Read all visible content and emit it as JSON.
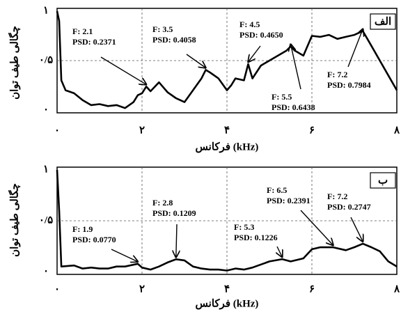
{
  "chart_data": [
    {
      "type": "line",
      "panel_label": "الف",
      "xlabel": "فرکانس (kHz)",
      "ylabel": "چگالی طیف توان",
      "color": "#000000",
      "grid": true,
      "xlim": [
        0,
        8
      ],
      "ylim": [
        0,
        1
      ],
      "xticks": [
        {
          "value": 0,
          "label": "۰"
        },
        {
          "value": 2,
          "label": "۲"
        },
        {
          "value": 4,
          "label": "۴"
        },
        {
          "value": 6,
          "label": "۶"
        },
        {
          "value": 8,
          "label": "۸"
        }
      ],
      "yticks": [
        {
          "value": 0,
          "label": "۰"
        },
        {
          "value": 0.5,
          "label": "۰/۵"
        },
        {
          "value": 1,
          "label": "۱"
        }
      ],
      "x": [
        0,
        0.05,
        0.1,
        0.2,
        0.4,
        0.6,
        0.8,
        1.0,
        1.2,
        1.4,
        1.6,
        1.8,
        1.9,
        2.0,
        2.1,
        2.2,
        2.4,
        2.6,
        2.8,
        3.0,
        3.2,
        3.4,
        3.5,
        3.6,
        3.8,
        4.0,
        4.1,
        4.2,
        4.4,
        4.5,
        4.6,
        4.8,
        5.0,
        5.2,
        5.4,
        5.5,
        5.6,
        5.8,
        6.0,
        6.2,
        6.4,
        6.6,
        6.8,
        7.0,
        7.2,
        7.4,
        7.6,
        7.8,
        8.0
      ],
      "values": [
        1.0,
        0.9,
        0.3,
        0.2,
        0.17,
        0.1,
        0.05,
        0.06,
        0.04,
        0.05,
        0.02,
        0.08,
        0.15,
        0.17,
        0.2371,
        0.19,
        0.28,
        0.18,
        0.12,
        0.08,
        0.2,
        0.32,
        0.4058,
        0.38,
        0.32,
        0.2,
        0.25,
        0.32,
        0.3,
        0.465,
        0.32,
        0.45,
        0.5,
        0.55,
        0.6,
        0.6438,
        0.6,
        0.55,
        0.75,
        0.74,
        0.76,
        0.72,
        0.74,
        0.76,
        0.7984,
        0.65,
        0.5,
        0.35,
        0.2
      ],
      "annotations": [
        {
          "x": 2.1,
          "y": 0.2371,
          "label": [
            "F: 2.1",
            "PSD: 0.2371"
          ]
        },
        {
          "x": 3.5,
          "y": 0.4058,
          "label": [
            "F: 3.5",
            "PSD: 0.4058"
          ]
        },
        {
          "x": 4.5,
          "y": 0.465,
          "label": [
            "F: 4.5",
            "PSD: 0.4650"
          ]
        },
        {
          "x": 5.5,
          "y": 0.6438,
          "label": [
            "F: 5.5",
            "PSD: 0.6438"
          ]
        },
        {
          "x": 7.2,
          "y": 0.7984,
          "label": [
            "F: 7.2",
            "PSD: 0.7984"
          ]
        }
      ]
    },
    {
      "type": "line",
      "panel_label": "ب",
      "xlabel": "فرکانس (kHz)",
      "ylabel": "چگالی طیف توان",
      "color": "#000000",
      "grid": true,
      "xlim": [
        0,
        8
      ],
      "ylim": [
        0,
        1
      ],
      "xticks": [
        {
          "value": 0,
          "label": "۰"
        },
        {
          "value": 2,
          "label": "۲"
        },
        {
          "value": 4,
          "label": "۴"
        },
        {
          "value": 6,
          "label": "۶"
        },
        {
          "value": 8,
          "label": "۸"
        }
      ],
      "yticks": [
        {
          "value": 0,
          "label": "۰"
        },
        {
          "value": 0.5,
          "label": "۰/۵"
        },
        {
          "value": 1,
          "label": "۱"
        }
      ],
      "x": [
        0,
        0.05,
        0.1,
        0.4,
        0.6,
        0.8,
        1.0,
        1.2,
        1.4,
        1.6,
        1.9,
        2.0,
        2.2,
        2.4,
        2.6,
        2.8,
        3.0,
        3.2,
        3.4,
        3.6,
        3.8,
        4.0,
        4.2,
        4.4,
        4.6,
        4.8,
        5.0,
        5.3,
        5.5,
        5.8,
        6.0,
        6.2,
        6.5,
        6.8,
        7.0,
        7.2,
        7.4,
        7.6,
        7.8,
        8.0
      ],
      "values": [
        1.0,
        0.6,
        0.05,
        0.06,
        0.03,
        0.04,
        0.03,
        0.03,
        0.05,
        0.05,
        0.077,
        0.04,
        0.02,
        0.05,
        0.09,
        0.1209,
        0.11,
        0.05,
        0.03,
        0.02,
        0.02,
        0.01,
        0.03,
        0.02,
        0.04,
        0.07,
        0.1,
        0.1226,
        0.1,
        0.13,
        0.22,
        0.24,
        0.2391,
        0.21,
        0.24,
        0.2747,
        0.24,
        0.2,
        0.1,
        0.05
      ],
      "annotations": [
        {
          "x": 1.9,
          "y": 0.077,
          "label": [
            "F: 1.9",
            "PSD: 0.0770"
          ]
        },
        {
          "x": 2.8,
          "y": 0.1209,
          "label": [
            "F: 2.8",
            "PSD: 0.1209"
          ]
        },
        {
          "x": 5.3,
          "y": 0.1226,
          "label": [
            "F: 5.3",
            "PSD: 0.1226"
          ]
        },
        {
          "x": 6.5,
          "y": 0.2391,
          "label": [
            "F: 6.5",
            "PSD: 0.2391"
          ]
        },
        {
          "x": 7.2,
          "y": 0.2747,
          "label": [
            "F: 7.2",
            "PSD: 0.2747"
          ]
        }
      ]
    }
  ]
}
